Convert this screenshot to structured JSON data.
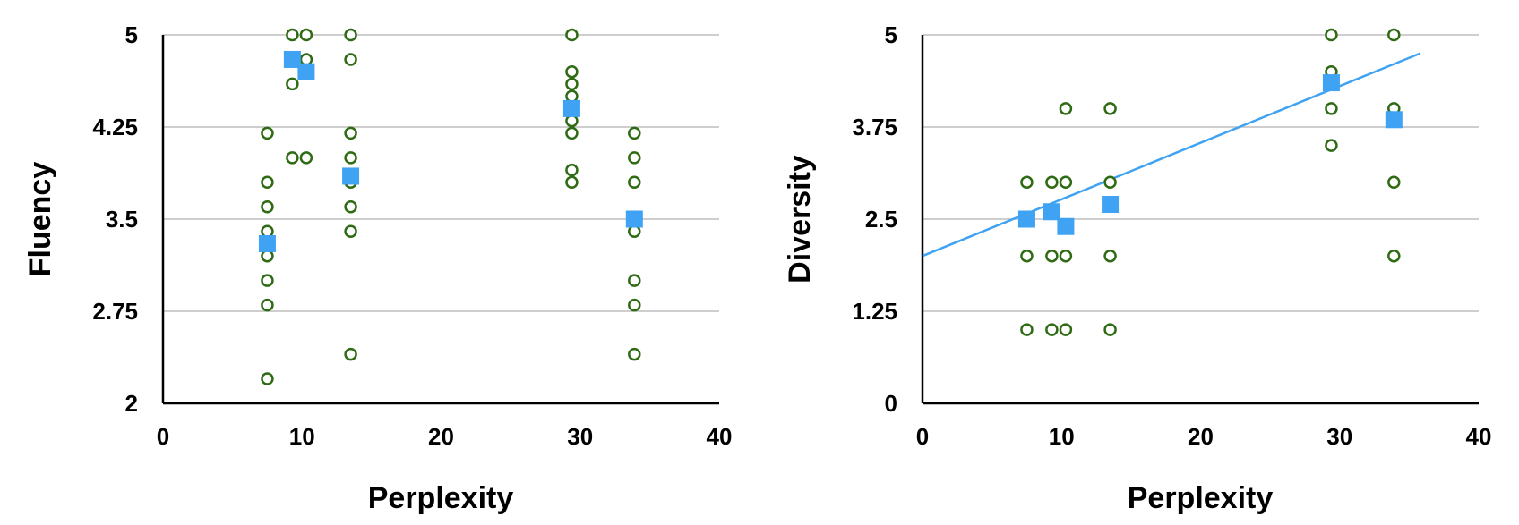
{
  "colors": {
    "individual": "#2e6b14",
    "mean": "#3fa2f2",
    "grid": "#bdbdbd",
    "axis": "#000000",
    "trendline": "#3fa2f2"
  },
  "chart_data": [
    {
      "type": "scatter",
      "title": "",
      "xlabel": "Perplexity",
      "ylabel": "Fluency",
      "xlim": [
        0,
        40
      ],
      "ylim": [
        2,
        5
      ],
      "x_ticks": [
        "0",
        "10",
        "20",
        "30",
        "40"
      ],
      "y_ticks": [
        "2",
        "2.75",
        "3.5",
        "4.25",
        "5"
      ],
      "grid": "horizontal",
      "legend": "none",
      "series": [
        {
          "marker": "hollow-circle",
          "points": [
            [
              7.5,
              4.2
            ],
            [
              7.5,
              3.8
            ],
            [
              7.5,
              3.6
            ],
            [
              7.5,
              3.4
            ],
            [
              7.5,
              3.2
            ],
            [
              7.5,
              3.0
            ],
            [
              7.5,
              2.8
            ],
            [
              7.5,
              2.2
            ],
            [
              9.3,
              5.0
            ],
            [
              9.3,
              4.6
            ],
            [
              9.3,
              4.0
            ],
            [
              10.3,
              5.0
            ],
            [
              10.3,
              4.8
            ],
            [
              10.3,
              4.0
            ],
            [
              13.5,
              5.0
            ],
            [
              13.5,
              4.8
            ],
            [
              13.5,
              4.2
            ],
            [
              13.5,
              4.0
            ],
            [
              13.5,
              3.8
            ],
            [
              13.5,
              3.6
            ],
            [
              13.5,
              3.4
            ],
            [
              13.5,
              2.4
            ],
            [
              29.4,
              5.0
            ],
            [
              29.4,
              4.7
            ],
            [
              29.4,
              4.6
            ],
            [
              29.4,
              4.5
            ],
            [
              29.4,
              4.3
            ],
            [
              29.4,
              4.2
            ],
            [
              29.4,
              3.9
            ],
            [
              29.4,
              3.8
            ],
            [
              33.9,
              4.2
            ],
            [
              33.9,
              4.0
            ],
            [
              33.9,
              3.8
            ],
            [
              33.9,
              3.5
            ],
            [
              33.9,
              3.4
            ],
            [
              33.9,
              3.0
            ],
            [
              33.9,
              2.8
            ],
            [
              33.9,
              2.4
            ]
          ]
        },
        {
          "marker": "filled-square",
          "points": [
            [
              7.5,
              3.3
            ],
            [
              9.3,
              4.8
            ],
            [
              10.3,
              4.7
            ],
            [
              13.5,
              3.85
            ],
            [
              29.4,
              4.4
            ],
            [
              33.9,
              3.5
            ]
          ]
        }
      ]
    },
    {
      "type": "scatter",
      "title": "",
      "xlabel": "Perplexity",
      "ylabel": "Diversity",
      "xlim": [
        0,
        40
      ],
      "ylim": [
        0,
        5
      ],
      "x_ticks": [
        "0",
        "10",
        "20",
        "30",
        "40"
      ],
      "y_ticks": [
        "0",
        "1.25",
        "2.5",
        "3.75",
        "5"
      ],
      "grid": "horizontal",
      "legend": "none",
      "series": [
        {
          "marker": "hollow-circle",
          "points": [
            [
              7.5,
              3.0
            ],
            [
              7.5,
              2.0
            ],
            [
              7.5,
              1.0
            ],
            [
              9.3,
              3.0
            ],
            [
              9.3,
              2.0
            ],
            [
              9.3,
              1.0
            ],
            [
              10.3,
              4.0
            ],
            [
              10.3,
              3.0
            ],
            [
              10.3,
              2.0
            ],
            [
              10.3,
              1.0
            ],
            [
              13.5,
              4.0
            ],
            [
              13.5,
              3.0
            ],
            [
              13.5,
              2.0
            ],
            [
              13.5,
              1.0
            ],
            [
              29.4,
              5.0
            ],
            [
              29.4,
              4.5
            ],
            [
              29.4,
              4.0
            ],
            [
              29.4,
              3.5
            ],
            [
              33.9,
              5.0
            ],
            [
              33.9,
              4.0
            ],
            [
              33.9,
              3.0
            ],
            [
              33.9,
              2.0
            ]
          ]
        },
        {
          "marker": "filled-square",
          "points": [
            [
              7.5,
              2.5
            ],
            [
              9.3,
              2.6
            ],
            [
              10.3,
              2.4
            ],
            [
              13.5,
              2.7
            ],
            [
              29.4,
              4.35
            ],
            [
              33.9,
              3.85
            ]
          ]
        }
      ],
      "trendline": {
        "type": "linear",
        "from": [
          0,
          2.0
        ],
        "to": [
          35.8,
          4.75
        ]
      }
    }
  ]
}
